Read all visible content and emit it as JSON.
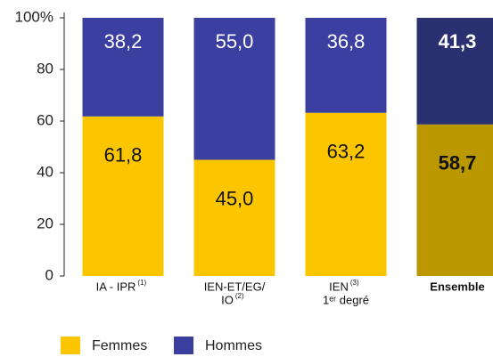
{
  "chart_data": {
    "type": "stacked_bar",
    "categories": [
      [
        "IA - IPR"
      ],
      [
        "IEN-ET/EG/",
        "IO"
      ],
      [
        "IEN",
        "1ᵉʳ degré"
      ],
      [
        "Ensemble"
      ]
    ],
    "category_notes": [
      "(1)",
      "(2)",
      "(3)",
      null
    ],
    "series": [
      {
        "name": "Femmes",
        "color": "#fbc500",
        "colors": [
          "#fbc500",
          "#fbc500",
          "#fbc500",
          "#bb9700"
        ],
        "values": [
          61.8,
          45.0,
          63.2,
          58.7
        ],
        "value_labels": [
          "61,8",
          "45,0",
          "63,2",
          "58,7"
        ]
      },
      {
        "name": "Hommes",
        "color": "#3b3f9f",
        "colors": [
          "#3b3f9f",
          "#3b3f9f",
          "#3b3f9f",
          "#2b3170"
        ],
        "values": [
          38.2,
          55.0,
          36.8,
          41.3
        ],
        "value_labels": [
          "38,2",
          "55,0",
          "36,8",
          "41,3"
        ]
      }
    ],
    "ylim": [
      0,
      100
    ],
    "yticks": [
      0,
      20,
      40,
      60,
      80,
      {
        "value": 100,
        "label": "100%"
      }
    ]
  }
}
